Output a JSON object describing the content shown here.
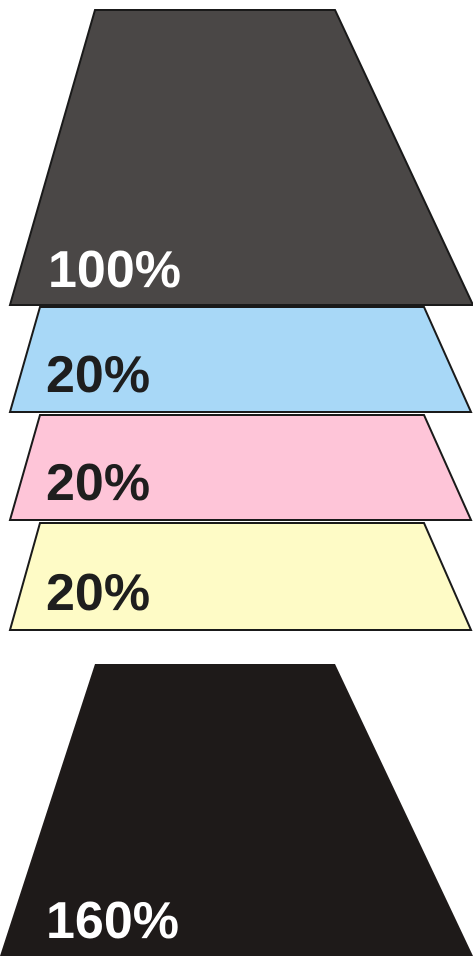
{
  "layers": [
    {
      "id": "black",
      "label": "100%",
      "fill": "#4a4746",
      "label_color": "#ffffff"
    },
    {
      "id": "cyan",
      "label": "20%",
      "fill": "#a8d8f7",
      "label_color": "#1e1e1e"
    },
    {
      "id": "magenta",
      "label": "20%",
      "fill": "#fec5d8",
      "label_color": "#1e1e1e"
    },
    {
      "id": "yellow",
      "label": "20%",
      "fill": "#fefbc6",
      "label_color": "#1e1e1e"
    }
  ],
  "total": {
    "label": "160%",
    "fill": "#1e1a19",
    "label_color": "#ffffff"
  }
}
